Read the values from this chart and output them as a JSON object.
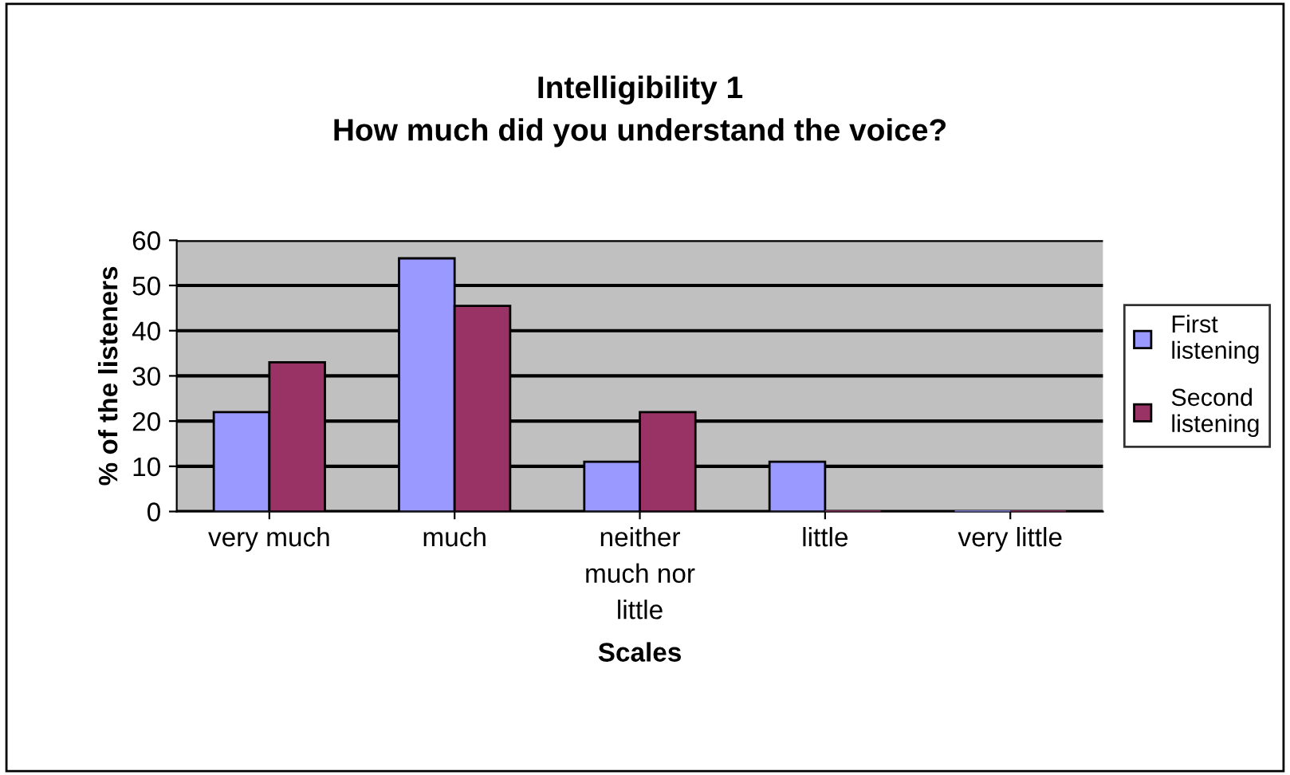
{
  "chart_data": {
    "type": "bar",
    "title": "Intelligibility 1\nHow much did you understand the voice?",
    "xlabel": "Scales",
    "ylabel": "% of the listeners",
    "categories": [
      "very much",
      "much",
      "neither\nmuch nor\nlittle",
      "little",
      "very little"
    ],
    "series": [
      {
        "name": "First\nlistening",
        "color": "#9999ff",
        "values": [
          22,
          56,
          11,
          11,
          0
        ]
      },
      {
        "name": "Second\nlistening",
        "color": "#993366",
        "values": [
          33,
          45.5,
          22,
          0,
          0
        ]
      }
    ],
    "ylim": [
      0,
      60
    ],
    "yticks": [
      0,
      10,
      20,
      30,
      40,
      50,
      60
    ],
    "grid": "y",
    "legend": "right"
  }
}
